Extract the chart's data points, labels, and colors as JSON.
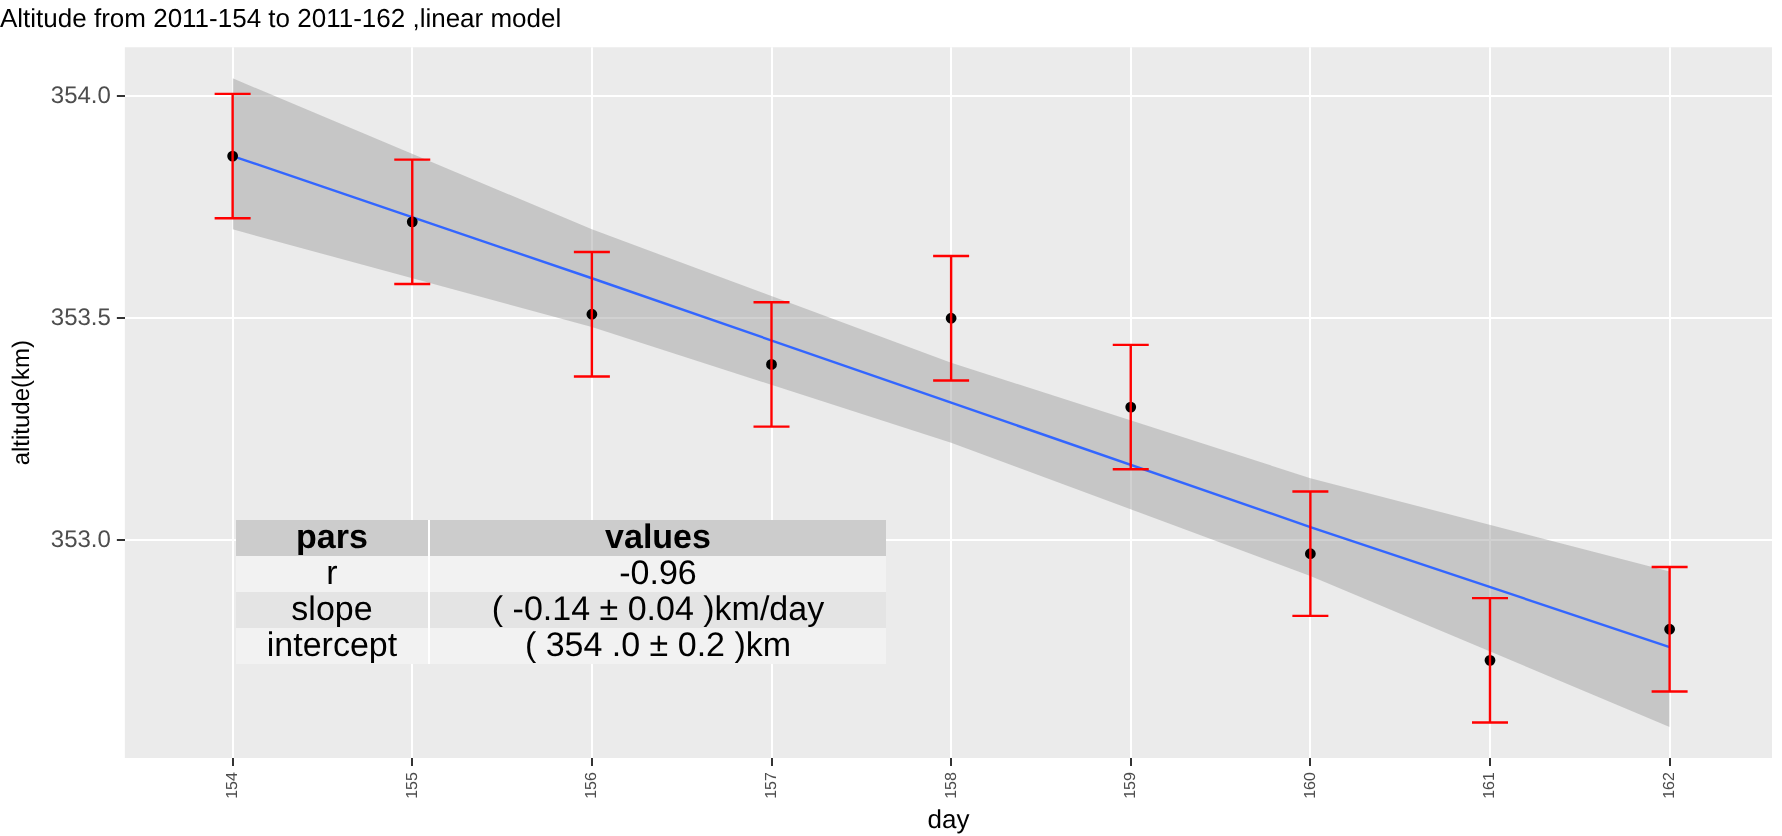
{
  "chart_data": {
    "type": "scatter",
    "title": "Altitude from 2011-154 to 2011-162 ,linear model",
    "xlabel": "day",
    "ylabel": "altitude(km)",
    "xlim": [
      153.4,
      162.57
    ],
    "xticks": [
      154,
      155,
      156,
      157,
      158,
      159,
      160,
      161,
      162
    ],
    "ylim": [
      352.51,
      354.11
    ],
    "yticks": [
      {
        "value": 353,
        "label": "353.0"
      },
      {
        "value": 353.5,
        "label": "353.5"
      },
      {
        "value": 354,
        "label": "354.0"
      }
    ],
    "grid": true,
    "legend": false,
    "series": [
      {
        "type": "line",
        "color": "#3366ff",
        "x": [
          154,
          156,
          158,
          160,
          162
        ],
        "values": [
          353.865,
          353.59,
          353.31,
          353.03,
          352.76
        ],
        "lower": [
          353.7,
          353.48,
          353.22,
          352.92,
          352.58
        ],
        "upper": [
          354.04,
          353.7,
          353.4,
          353.14,
          352.93
        ]
      },
      {
        "marker": "circle",
        "color": "#000000",
        "x": [
          154,
          155,
          156,
          157,
          158,
          159,
          160,
          161,
          162
        ],
        "values": [
          353.865,
          353.717,
          353.509,
          353.396,
          353.5,
          353.3,
          352.97,
          352.73,
          352.8
        ],
        "errors": [
          0.14,
          0.14,
          0.14,
          0.14,
          0.14,
          0.14,
          0.14,
          0.14,
          0.14
        ]
      }
    ],
    "annotations": [
      "pars",
      "values",
      "r",
      "-0.96",
      "slope",
      "( -0.14 ± 0.04 )km/day",
      "intercept",
      "( 354 .0 ± 0.2 )km"
    ]
  }
}
